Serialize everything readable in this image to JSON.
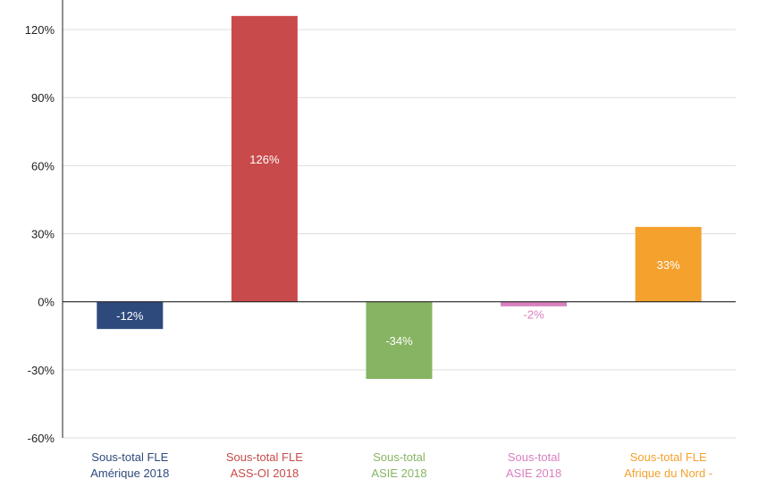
{
  "chart_data": {
    "type": "bar",
    "title": "",
    "xlabel": "",
    "ylabel": "",
    "ylim": [
      -60,
      135
    ],
    "yticks": [
      -60,
      -30,
      0,
      30,
      60,
      90,
      120
    ],
    "ytick_labels": [
      "-60%",
      "-30%",
      "0%",
      "30%",
      "60%",
      "90%",
      "120%"
    ],
    "grid": "horizontal",
    "categories": [
      [
        "Sous-total FLE",
        "Amérique 2018"
      ],
      [
        "Sous-total FLE",
        "ASS-OI 2018"
      ],
      [
        "Sous-total",
        "ASIE 2018"
      ],
      [
        "Sous-total",
        "ASIE 2018"
      ],
      [
        "Sous-total FLE",
        "Afrique du Nord -"
      ]
    ],
    "values": [
      -12,
      126,
      -34,
      -2,
      33
    ],
    "value_labels": [
      "-12%",
      "126%",
      "-34%",
      "-2%",
      "33%"
    ],
    "colors": [
      "#2e4a7d",
      "#c94a4a",
      "#86b463",
      "#d97fbf",
      "#f4a12e"
    ],
    "label_colors": [
      "#ffffff",
      "#ffffff",
      "#ffffff",
      "#d97fbf",
      "#ffffff"
    ],
    "category_colors": [
      "#2e4a7d",
      "#c94a4a",
      "#86b463",
      "#d97fbf",
      "#f4a12e"
    ],
    "axis_color": "#222222",
    "grid_color": "#dddddd"
  }
}
